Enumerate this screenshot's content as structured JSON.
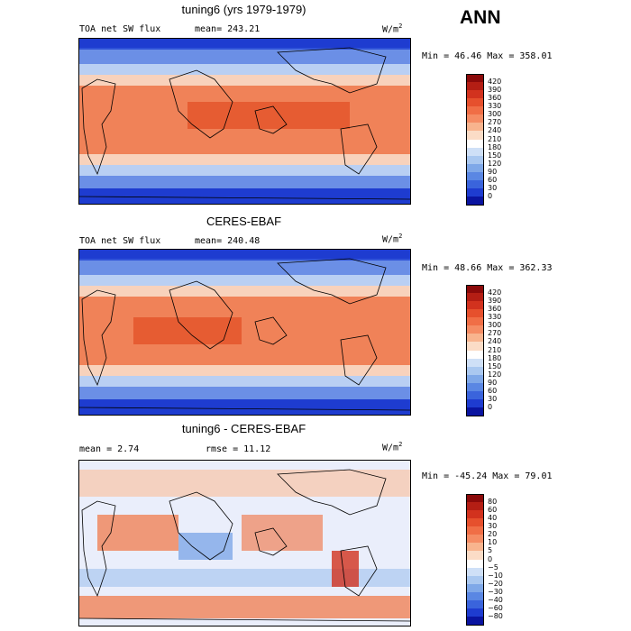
{
  "season": "ANN",
  "panels": [
    {
      "title": "tuning6 (yrs 1979-1979)",
      "left_label": "TOA net SW flux",
      "center_label": "mean=  243.21",
      "units": "W/m",
      "units_sup": "2",
      "minmax": "Min =  46.46 Max = 358.01",
      "type": "abs"
    },
    {
      "title": "CERES-EBAF",
      "left_label": "TOA net SW flux",
      "center_label": "mean= 240.48",
      "units": "W/m",
      "units_sup": "2",
      "minmax": "Min =  48.66 Max = 362.33",
      "type": "abs"
    },
    {
      "title": "tuning6 - CERES-EBAF",
      "left_label": "mean =   2.74",
      "center_label": "rmse =  11.12",
      "units": "W/m",
      "units_sup": "2",
      "minmax": "Min = -45.24 Max =  79.01",
      "type": "diff"
    }
  ],
  "colorbar_abs": {
    "labels": [
      "420",
      "390",
      "360",
      "330",
      "300",
      "270",
      "240",
      "210",
      "180",
      "150",
      "120",
      "90",
      "60",
      "30",
      "0"
    ],
    "colors": [
      "#8b0a0a",
      "#b41e14",
      "#d2321e",
      "#e6502d",
      "#f06e46",
      "#f58c64",
      "#f8b48e",
      "#fbdcc6",
      "#ffffff",
      "#cfe0f7",
      "#aac8f0",
      "#7fa8e8",
      "#5a87e3",
      "#3a64dc",
      "#1e3cd0",
      "#0a14a0"
    ]
  },
  "colorbar_diff": {
    "labels": [
      "80",
      "60",
      "40",
      "30",
      "20",
      "10",
      "5",
      "0",
      "−5",
      "−10",
      "−20",
      "−30",
      "−40",
      "−60",
      "−80"
    ],
    "colors": [
      "#8b0a0a",
      "#b41e14",
      "#d2321e",
      "#e6502d",
      "#f06e46",
      "#f58c64",
      "#f8b48e",
      "#fbdcc6",
      "#ffffff",
      "#cfe0f7",
      "#aac8f0",
      "#7fa8e8",
      "#5a87e3",
      "#3a64dc",
      "#1e3cd0",
      "#0a14a0"
    ]
  }
}
